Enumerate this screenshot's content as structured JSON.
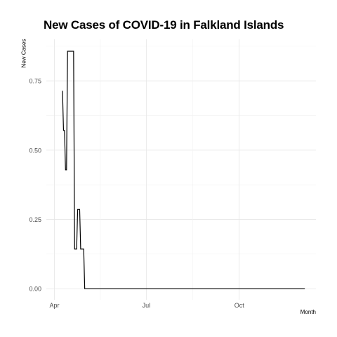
{
  "chart_data": {
    "type": "line",
    "title": "New Cases of COVID-19 in Falkland Islands",
    "xlabel": "Month",
    "ylabel": "New Cases",
    "x_ticks": [
      {
        "label": "Apr",
        "date": "2020-04-01"
      },
      {
        "label": "Jul",
        "date": "2020-07-01"
      },
      {
        "label": "Oct",
        "date": "2020-10-01"
      }
    ],
    "xlim": [
      "2020-03-24",
      "2020-12-16"
    ],
    "y_ticks": [
      0,
      0.25,
      0.5,
      0.75
    ],
    "ylim": [
      -0.04,
      0.9
    ],
    "grid": true,
    "line_color": "#000000",
    "series": [
      {
        "x": [
          "2020-04-09",
          "2020-04-10",
          "2020-04-11",
          "2020-04-12",
          "2020-04-13",
          "2020-04-14",
          "2020-04-15",
          "2020-04-16",
          "2020-04-17",
          "2020-04-18",
          "2020-04-19",
          "2020-04-20",
          "2020-04-21",
          "2020-04-22",
          "2020-04-23",
          "2020-04-24",
          "2020-04-25",
          "2020-04-26",
          "2020-04-27",
          "2020-04-28",
          "2020-04-29",
          "2020-04-30",
          "2020-05-01",
          "2020-05-02",
          "2020-05-03",
          "2020-12-05"
        ],
        "y": [
          0.714,
          0.571,
          0.571,
          0.429,
          0.429,
          0.857,
          0.857,
          0.857,
          0.857,
          0.857,
          0.857,
          0.857,
          0.143,
          0.143,
          0.143,
          0.286,
          0.286,
          0.286,
          0.143,
          0.143,
          0.143,
          0.143,
          0,
          0,
          0,
          0
        ]
      }
    ]
  }
}
